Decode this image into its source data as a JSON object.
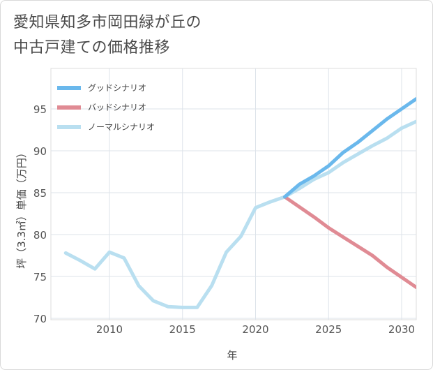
{
  "title_lines": [
    "愛知県知多市岡田緑が丘の",
    "中古戸建ての価格推移"
  ],
  "chart_data": {
    "type": "line",
    "title": "愛知県知多市岡田緑が丘の中古戸建ての価格推移",
    "xlabel": "年",
    "ylabel": "坪（3.3㎡）単価（万円）",
    "xlim": [
      2006.3,
      2031
    ],
    "ylim": [
      70,
      99
    ],
    "xticks": [
      2010,
      2015,
      2020,
      2025,
      2030
    ],
    "yticks": [
      70,
      75,
      80,
      85,
      90,
      95
    ],
    "grid": true,
    "legend_position": "top-left",
    "series": [
      {
        "name": "グッドシナリオ",
        "color": "#6ab8ec",
        "x": [
          2022,
          2023,
          2024,
          2025,
          2026,
          2027,
          2028,
          2029,
          2030,
          2031
        ],
        "y": [
          84.5,
          86.0,
          87.0,
          88.2,
          89.8,
          91.0,
          92.4,
          93.8,
          95.0,
          96.2
        ]
      },
      {
        "name": "バッドシナリオ",
        "color": "#e08b94",
        "x": [
          2022,
          2023,
          2024,
          2025,
          2026,
          2027,
          2028,
          2029,
          2030,
          2031
        ],
        "y": [
          84.5,
          83.3,
          82.1,
          80.8,
          79.7,
          78.6,
          77.5,
          76.1,
          74.9,
          73.7
        ]
      },
      {
        "name": "ノーマルシナリオ",
        "color": "#b9dff0",
        "x": [
          2007,
          2008,
          2009,
          2010,
          2011,
          2012,
          2013,
          2014,
          2015,
          2016,
          2017,
          2018,
          2019,
          2020,
          2021,
          2022,
          2023,
          2024,
          2025,
          2026,
          2027,
          2028,
          2029,
          2030,
          2031
        ],
        "y": [
          77.8,
          76.9,
          75.9,
          77.9,
          77.2,
          73.9,
          72.1,
          71.4,
          71.3,
          71.3,
          73.9,
          77.9,
          79.8,
          83.2,
          83.9,
          84.5,
          85.5,
          86.6,
          87.4,
          88.6,
          89.6,
          90.6,
          91.5,
          92.7,
          93.5
        ]
      }
    ]
  }
}
